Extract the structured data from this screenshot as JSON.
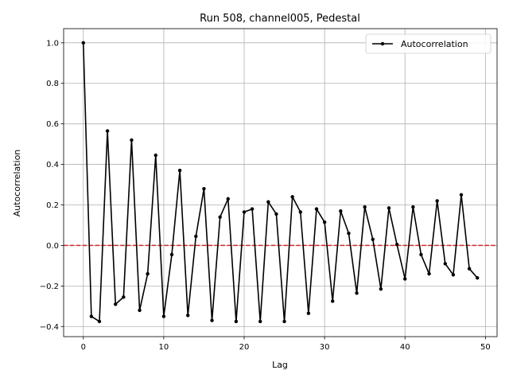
{
  "chart_data": {
    "type": "line",
    "title": "Run 508, channel005, Pedestal",
    "xlabel": "Lag",
    "ylabel": "Autocorrelation",
    "xlim": [
      -2.45,
      51.45
    ],
    "ylim": [
      -0.45,
      1.07
    ],
    "xticks": [
      0,
      10,
      20,
      30,
      40,
      50
    ],
    "xtick_labels": [
      "0",
      "10",
      "20",
      "30",
      "40",
      "50"
    ],
    "yticks": [
      -0.4,
      -0.2,
      0.0,
      0.2,
      0.4,
      0.6,
      0.8,
      1.0
    ],
    "ytick_labels": [
      "−0.4",
      "−0.2",
      "0.0",
      "0.2",
      "0.4",
      "0.6",
      "0.8",
      "1.0"
    ],
    "grid": true,
    "legend_position": "top-right",
    "reference_line": {
      "y": 0.0,
      "color": "#d62728",
      "style": "dashed"
    },
    "series": [
      {
        "name": "Autocorrelation",
        "color": "#000000",
        "marker": "circle",
        "x": [
          0,
          1,
          2,
          3,
          4,
          5,
          6,
          7,
          8,
          9,
          10,
          11,
          12,
          13,
          14,
          15,
          16,
          17,
          18,
          19,
          20,
          21,
          22,
          23,
          24,
          25,
          26,
          27,
          28,
          29,
          30,
          31,
          32,
          33,
          34,
          35,
          36,
          37,
          38,
          39,
          40,
          41,
          42,
          43,
          44,
          45,
          46,
          47,
          48,
          49
        ],
        "y": [
          1.0,
          -0.35,
          -0.375,
          0.565,
          -0.29,
          -0.255,
          0.52,
          -0.32,
          -0.14,
          0.445,
          -0.35,
          -0.045,
          0.37,
          -0.345,
          0.045,
          0.28,
          -0.37,
          0.14,
          0.23,
          -0.375,
          0.165,
          0.18,
          -0.375,
          0.215,
          0.155,
          -0.375,
          0.24,
          0.165,
          -0.335,
          0.18,
          0.115,
          -0.275,
          0.17,
          0.06,
          -0.235,
          0.19,
          0.03,
          -0.215,
          0.185,
          0.005,
          -0.165,
          0.19,
          -0.045,
          -0.14,
          0.22,
          -0.09,
          -0.145,
          0.25,
          -0.115,
          -0.16
        ]
      }
    ]
  }
}
